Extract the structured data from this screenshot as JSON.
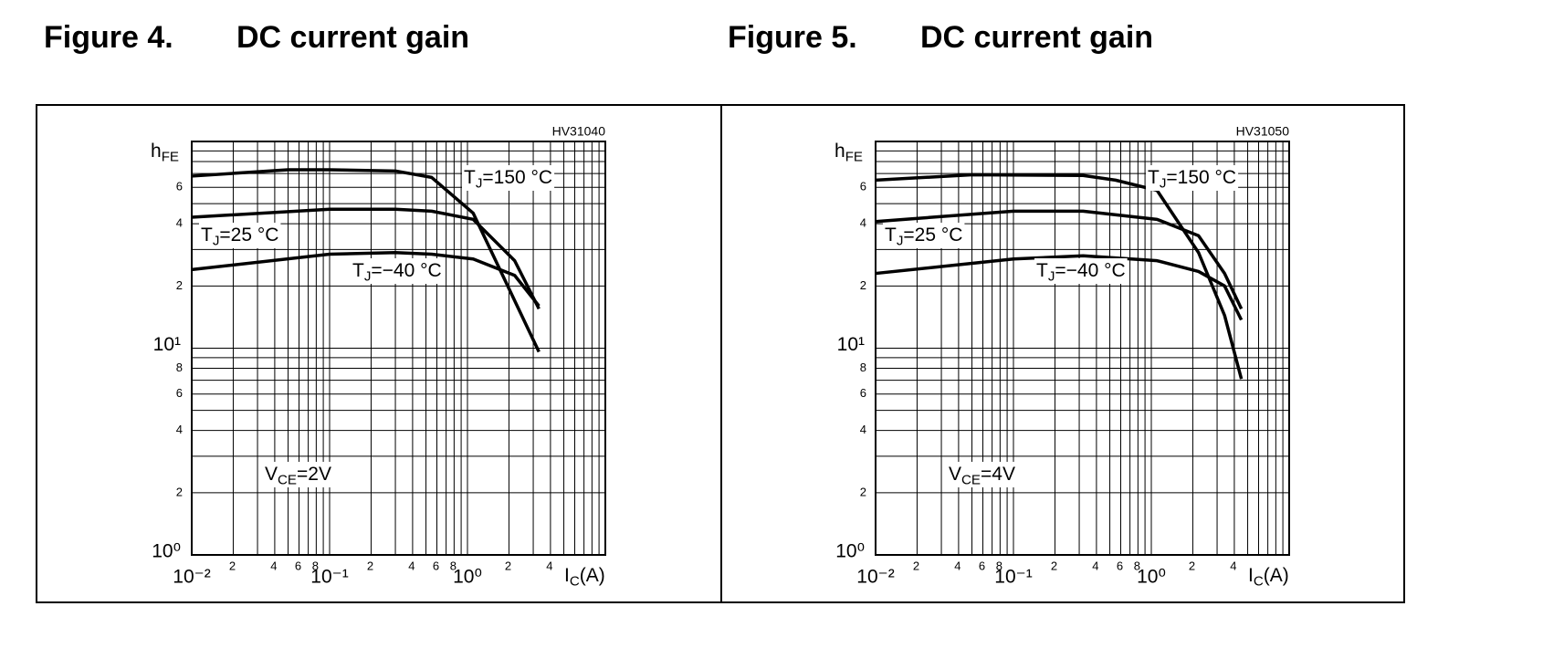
{
  "chart_data": [
    {
      "type": "line",
      "figure_label": "Figure 4.",
      "title": "DC current gain",
      "code": "HV31040",
      "log_x": true,
      "log_y": true,
      "grid": true,
      "xlim": [
        0.01,
        10
      ],
      "ylim": [
        1,
        100
      ],
      "xticks": [
        {
          "value": 0.01,
          "label": "10⁻²"
        },
        {
          "value": 0.02,
          "label": "2"
        },
        {
          "value": 0.04,
          "label": "4"
        },
        {
          "value": 0.06,
          "label": "6"
        },
        {
          "value": 0.08,
          "label": "8"
        },
        {
          "value": 0.1,
          "label": "10⁻¹"
        },
        {
          "value": 0.2,
          "label": "2"
        },
        {
          "value": 0.4,
          "label": "4"
        },
        {
          "value": 0.6,
          "label": "6"
        },
        {
          "value": 0.8,
          "label": "8"
        },
        {
          "value": 1,
          "label": "10⁰"
        },
        2,
        4
      ],
      "xminor": [
        0.03,
        0.05,
        0.07,
        0.09,
        0.3,
        0.5,
        0.7,
        0.9,
        3,
        5,
        6,
        7,
        8,
        9
      ],
      "yticks": [
        {
          "value": 1,
          "label": "10⁰"
        },
        2,
        4,
        6,
        8,
        {
          "value": 10,
          "label": "10¹"
        },
        {
          "value": 20,
          "label": "2"
        },
        {
          "value": 40,
          "label": "4"
        },
        {
          "value": 60,
          "label": "6"
        }
      ],
      "yminor": [
        3,
        5,
        7,
        9,
        30,
        50,
        70,
        80,
        90
      ],
      "xlabel": {
        "main": "I",
        "sub": "C",
        "rest": "(A)"
      },
      "ylabel": {
        "main": "h",
        "sub": "FE"
      },
      "annotations": [
        {
          "main": "T",
          "sub": "J",
          "rest": "=150 °C"
        },
        {
          "main": "T",
          "sub": "J",
          "rest": "=25 °C"
        },
        {
          "main": "T",
          "sub": "J",
          "rest": "=−40 °C"
        },
        {
          "main": "V",
          "sub": "CE",
          "rest": "=2V"
        }
      ],
      "series": [
        {
          "color": "#000000",
          "x": [
            0.01,
            0.05,
            0.1,
            0.3,
            0.55,
            1.1,
            3.3
          ],
          "values": [
            68,
            73,
            73,
            72,
            67,
            45,
            9.6
          ]
        },
        {
          "color": "#000000",
          "x": [
            0.01,
            0.1,
            0.3,
            0.55,
            1.1,
            2.2,
            3.3
          ],
          "values": [
            43,
            47,
            47,
            46,
            42,
            26.5,
            15.5
          ]
        },
        {
          "color": "#000000",
          "x": [
            0.01,
            0.1,
            0.3,
            0.55,
            1.1,
            2.2,
            3.3
          ],
          "values": [
            24,
            28.5,
            29,
            28.5,
            27,
            22.5,
            16
          ]
        }
      ]
    },
    {
      "type": "line",
      "figure_label": "Figure 5.",
      "title": "DC current gain",
      "code": "HV31050",
      "log_x": true,
      "log_y": true,
      "grid": true,
      "xlim": [
        0.01,
        10
      ],
      "ylim": [
        1,
        100
      ],
      "xticks": [
        {
          "value": 0.01,
          "label": "10⁻²"
        },
        {
          "value": 0.02,
          "label": "2"
        },
        {
          "value": 0.04,
          "label": "4"
        },
        {
          "value": 0.06,
          "label": "6"
        },
        {
          "value": 0.08,
          "label": "8"
        },
        {
          "value": 0.1,
          "label": "10⁻¹"
        },
        {
          "value": 0.2,
          "label": "2"
        },
        {
          "value": 0.4,
          "label": "4"
        },
        {
          "value": 0.6,
          "label": "6"
        },
        {
          "value": 0.8,
          "label": "8"
        },
        {
          "value": 1,
          "label": "10⁰"
        },
        2,
        4
      ],
      "xminor": [
        0.03,
        0.05,
        0.07,
        0.09,
        0.3,
        0.5,
        0.7,
        0.9,
        3,
        5,
        6,
        7,
        8,
        9
      ],
      "yticks": [
        {
          "value": 1,
          "label": "10⁰"
        },
        2,
        4,
        6,
        8,
        {
          "value": 10,
          "label": "10¹"
        },
        {
          "value": 20,
          "label": "2"
        },
        {
          "value": 40,
          "label": "4"
        },
        {
          "value": 60,
          "label": "6"
        }
      ],
      "yminor": [
        3,
        5,
        7,
        9,
        30,
        50,
        70,
        80,
        90
      ],
      "xlabel": {
        "main": "I",
        "sub": "C",
        "rest": "(A)"
      },
      "ylabel": {
        "main": "h",
        "sub": "FE"
      },
      "annotations": [
        {
          "main": "T",
          "sub": "J",
          "rest": "=150 °C"
        },
        {
          "main": "T",
          "sub": "J",
          "rest": "=25 °C"
        },
        {
          "main": "T",
          "sub": "J",
          "rest": "=−40 °C"
        },
        {
          "main": "V",
          "sub": "CE",
          "rest": "=4V"
        }
      ],
      "series": [
        {
          "color": "#000000",
          "x": [
            0.01,
            0.05,
            0.32,
            0.55,
            1.1,
            2.2,
            3.4,
            4.5
          ],
          "values": [
            65,
            69,
            68.5,
            65,
            58,
            29,
            14.4,
            7.1
          ]
        },
        {
          "color": "#000000",
          "x": [
            0.01,
            0.1,
            0.32,
            1.1,
            2.2,
            3.4,
            4.5
          ],
          "values": [
            41,
            46,
            46,
            42,
            35,
            23,
            15.5
          ]
        },
        {
          "color": "#000000",
          "x": [
            0.01,
            0.1,
            0.32,
            1.1,
            2.2,
            3.4,
            4.5
          ],
          "values": [
            23,
            27,
            28,
            26.5,
            23.5,
            20,
            13.7
          ]
        }
      ]
    }
  ]
}
